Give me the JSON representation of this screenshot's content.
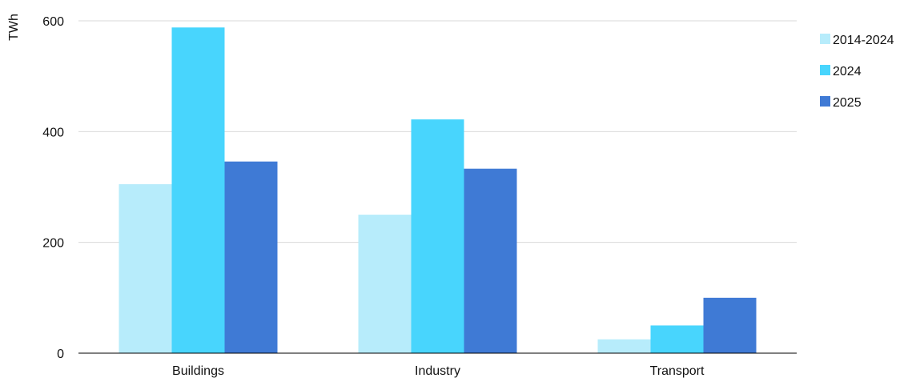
{
  "chart_data": {
    "type": "bar",
    "title": "",
    "xlabel": "",
    "ylabel": "TWh",
    "categories": [
      "Buildings",
      "Industry",
      "Transport"
    ],
    "series": [
      {
        "name": "2014-2024",
        "values": [
          305,
          250,
          25
        ],
        "color": "#b7ecfb"
      },
      {
        "name": "2024",
        "values": [
          588,
          422,
          50
        ],
        "color": "#48d5fd"
      },
      {
        "name": "2025",
        "values": [
          346,
          333,
          100
        ],
        "color": "#3f7ad5"
      }
    ],
    "ylim": [
      0,
      600
    ],
    "yticks": [
      "0",
      "200",
      "400",
      "600"
    ],
    "grid": true,
    "legend_position": "right"
  }
}
